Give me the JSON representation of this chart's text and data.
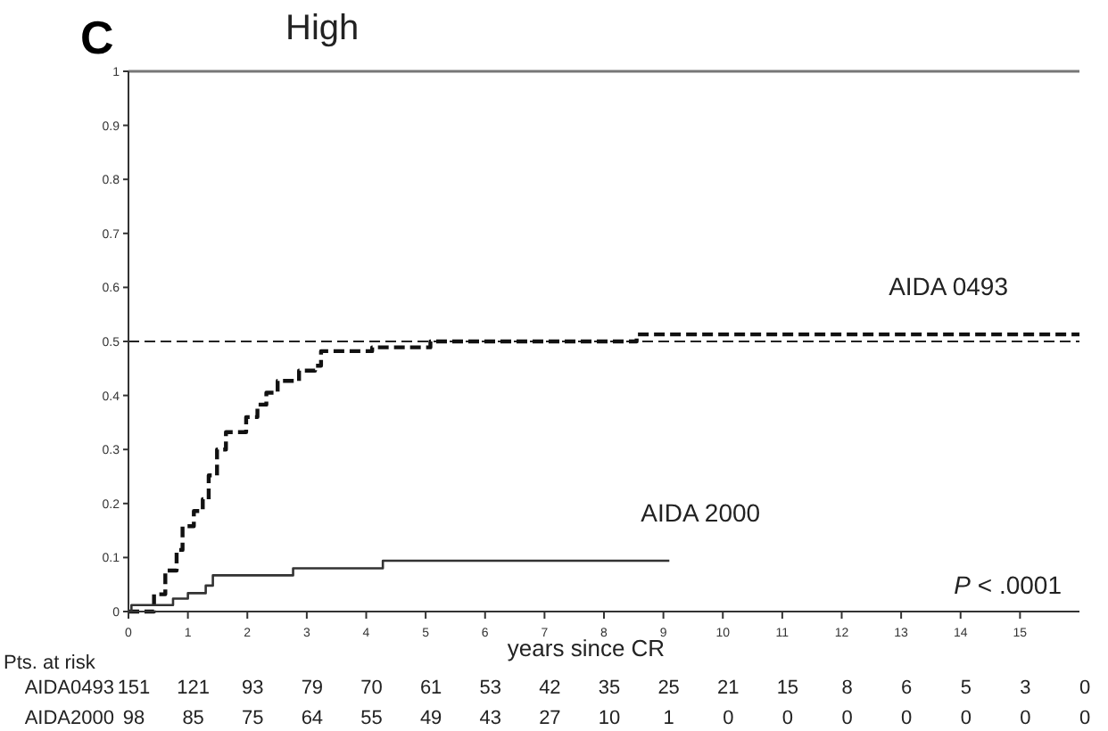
{
  "chart_data": {
    "type": "step",
    "title": "High",
    "xlabel": "years since CR",
    "xlim": [
      0,
      16
    ],
    "xticks": [
      0,
      1,
      2,
      3,
      4,
      5,
      6,
      7,
      8,
      9,
      10,
      11,
      12,
      13,
      14,
      15
    ],
    "ylim": [
      0,
      1
    ],
    "yticks": [
      0,
      0.1,
      0.2,
      0.3,
      0.4,
      0.5,
      0.6,
      0.7,
      0.8,
      0.9,
      1
    ],
    "grid": false,
    "marker": "none",
    "series": [
      {
        "name": "AIDA 0493",
        "color": "#111111",
        "line_style": "dashed",
        "x": [
          0,
          0.28,
          0.43,
          0.62,
          0.81,
          0.91,
          1.1,
          1.25,
          1.35,
          1.49,
          1.64,
          1.98,
          2.17,
          2.32,
          2.51,
          2.87,
          3.14,
          3.24,
          4.1,
          5.08,
          8.55,
          16
        ],
        "values": [
          0,
          0,
          0.032,
          0.076,
          0.114,
          0.158,
          0.186,
          0.208,
          0.252,
          0.3,
          0.332,
          0.36,
          0.383,
          0.405,
          0.427,
          0.446,
          0.455,
          0.482,
          0.489,
          0.5,
          0.513,
          0.513
        ]
      },
      {
        "name": "AIDA 2000",
        "color": "#333333",
        "line_style": "solid",
        "x": [
          0,
          0.05,
          0.75,
          1.0,
          1.3,
          1.42,
          2.77,
          4.28,
          9.1
        ],
        "values": [
          0,
          0.012,
          0.024,
          0.034,
          0.048,
          0.067,
          0.08,
          0.094,
          0.094
        ]
      }
    ],
    "ref_lines": [
      {
        "axis": "y",
        "value": 0.5,
        "line_style": "dashed",
        "color": "#222222"
      }
    ],
    "annotations": [
      "C",
      "P < .0001",
      "Pts. at risk",
      "AIDA0493",
      "151",
      "121",
      "93",
      "79",
      "70",
      "61",
      "53",
      "42",
      "35",
      "25",
      "21",
      "15",
      "8",
      "6",
      "5",
      "3",
      "0",
      "AIDA2000",
      "98",
      "85",
      "75",
      "64",
      "55",
      "49",
      "43",
      "27",
      "10",
      "1",
      "0",
      "0",
      "0",
      "0",
      "0",
      "0",
      "0"
    ]
  }
}
